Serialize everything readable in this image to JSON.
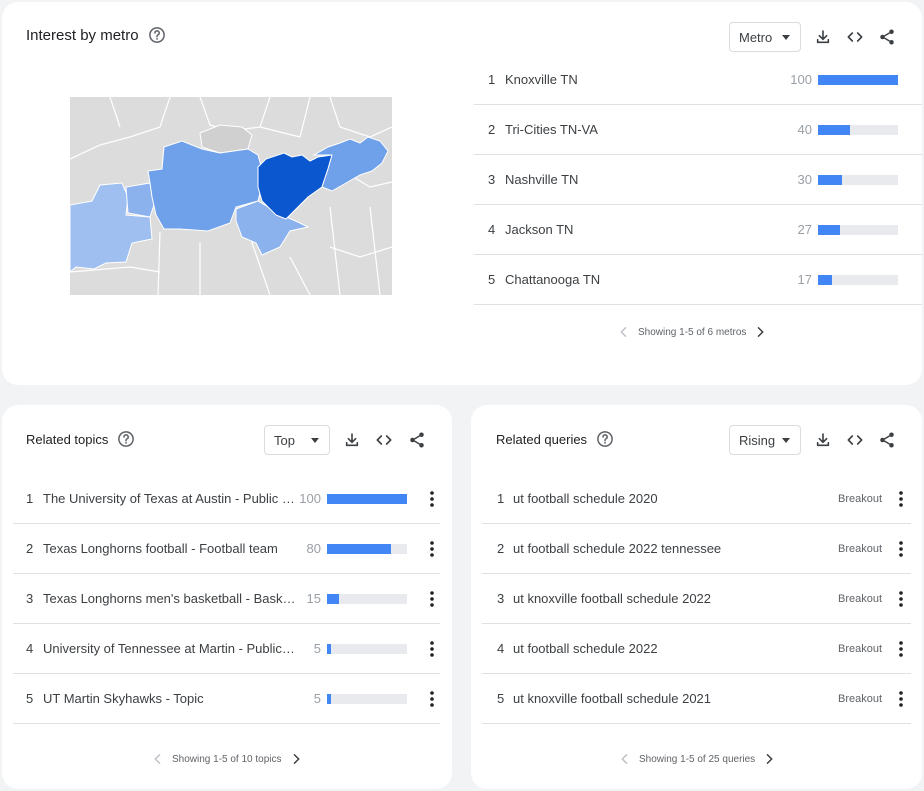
{
  "metro": {
    "title": "Interest by metro",
    "dropdown": "Metro",
    "rows": [
      {
        "rank": "1",
        "label": "Knoxville TN",
        "value": "100",
        "pct": 100
      },
      {
        "rank": "2",
        "label": "Tri-Cities TN-VA",
        "value": "40",
        "pct": 40
      },
      {
        "rank": "3",
        "label": "Nashville TN",
        "value": "30",
        "pct": 30
      },
      {
        "rank": "4",
        "label": "Jackson TN",
        "value": "27",
        "pct": 27
      },
      {
        "rank": "5",
        "label": "Chattanooga TN",
        "value": "17",
        "pct": 17
      }
    ],
    "pager": "Showing 1-5 of 6 metros"
  },
  "topics": {
    "title": "Related topics",
    "dropdown": "Top",
    "rows": [
      {
        "rank": "1",
        "label": "The University of Texas at Austin - Public un...",
        "value": "100",
        "pct": 100
      },
      {
        "rank": "2",
        "label": "Texas Longhorns football - Football team",
        "value": "80",
        "pct": 80
      },
      {
        "rank": "3",
        "label": "Texas Longhorns men's basketball - Basket...",
        "value": "15",
        "pct": 15
      },
      {
        "rank": "4",
        "label": "University of Tennessee at Martin - Public u...",
        "value": "5",
        "pct": 5
      },
      {
        "rank": "5",
        "label": "UT Martin Skyhawks - Topic",
        "value": "5",
        "pct": 5
      }
    ],
    "pager": "Showing 1-5 of 10 topics"
  },
  "queries": {
    "title": "Related queries",
    "dropdown": "Rising",
    "rows": [
      {
        "rank": "1",
        "label": "ut football schedule 2020",
        "value": "Breakout"
      },
      {
        "rank": "2",
        "label": "ut football schedule 2022 tennessee",
        "value": "Breakout"
      },
      {
        "rank": "3",
        "label": "ut knoxville football schedule 2022",
        "value": "Breakout"
      },
      {
        "rank": "4",
        "label": "ut football schedule 2022",
        "value": "Breakout"
      },
      {
        "rank": "5",
        "label": "ut knoxville football schedule 2021",
        "value": "Breakout"
      }
    ],
    "pager": "Showing 1-5 of 25 queries"
  },
  "icons": {
    "help": "help-icon",
    "download": "download-icon",
    "embed": "embed-code-icon",
    "share": "share-icon",
    "more": "more-vert-icon",
    "prev": "chevron-left-icon",
    "next": "chevron-right-icon"
  },
  "colors": {
    "bar": "#4285f4",
    "bar_track": "#e8eaed",
    "map_darkest": "#0b57d0",
    "map_mid": "#6fa0ea",
    "map_light": "#9fbff1",
    "map_none": "#dcdcdc"
  }
}
